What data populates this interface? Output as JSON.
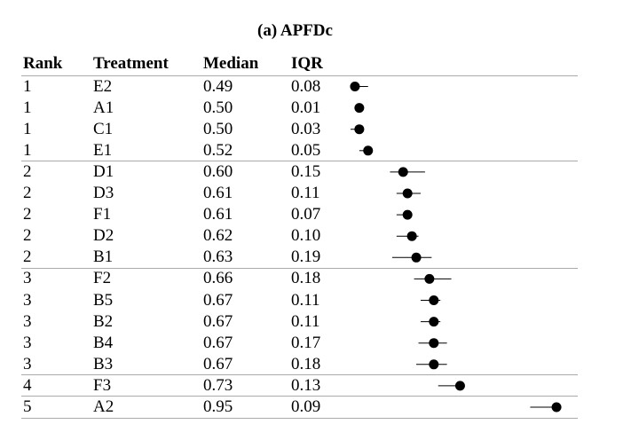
{
  "title": "(a) APFDc",
  "columns": [
    "Rank",
    "Treatment",
    "Median",
    "IQR"
  ],
  "chart_data": {
    "type": "table",
    "xlim": [
      0.48,
      0.96
    ],
    "rows": [
      {
        "rank": "1",
        "treatment": "E2",
        "median": "0.49",
        "iqr": "0.08",
        "low": 0.48,
        "high": 0.52
      },
      {
        "rank": "1",
        "treatment": "A1",
        "median": "0.50",
        "iqr": "0.01",
        "low": 0.497,
        "high": 0.503
      },
      {
        "rank": "1",
        "treatment": "C1",
        "median": "0.50",
        "iqr": "0.03",
        "low": 0.48,
        "high": 0.505
      },
      {
        "rank": "1",
        "treatment": "E1",
        "median": "0.52",
        "iqr": "0.05",
        "low": 0.5,
        "high": 0.53
      },
      {
        "rank": "2",
        "treatment": "D1",
        "median": "0.60",
        "iqr": "0.15",
        "low": 0.57,
        "high": 0.65
      },
      {
        "rank": "2",
        "treatment": "D3",
        "median": "0.61",
        "iqr": "0.11",
        "low": 0.585,
        "high": 0.64
      },
      {
        "rank": "2",
        "treatment": "F1",
        "median": "0.61",
        "iqr": "0.07",
        "low": 0.585,
        "high": 0.615
      },
      {
        "rank": "2",
        "treatment": "D2",
        "median": "0.62",
        "iqr": "0.10",
        "low": 0.585,
        "high": 0.635
      },
      {
        "rank": "2",
        "treatment": "B1",
        "median": "0.63",
        "iqr": "0.19",
        "low": 0.575,
        "high": 0.665
      },
      {
        "rank": "3",
        "treatment": "F2",
        "median": "0.66",
        "iqr": "0.18",
        "low": 0.625,
        "high": 0.71
      },
      {
        "rank": "3",
        "treatment": "B5",
        "median": "0.67",
        "iqr": "0.11",
        "low": 0.64,
        "high": 0.685
      },
      {
        "rank": "3",
        "treatment": "B2",
        "median": "0.67",
        "iqr": "0.11",
        "low": 0.64,
        "high": 0.685
      },
      {
        "rank": "3",
        "treatment": "B4",
        "median": "0.67",
        "iqr": "0.17",
        "low": 0.635,
        "high": 0.7
      },
      {
        "rank": "3",
        "treatment": "B3",
        "median": "0.67",
        "iqr": "0.18",
        "low": 0.63,
        "high": 0.7
      },
      {
        "rank": "4",
        "treatment": "F3",
        "median": "0.73",
        "iqr": "0.13",
        "low": 0.68,
        "high": 0.73
      },
      {
        "rank": "5",
        "treatment": "A2",
        "median": "0.95",
        "iqr": "0.09",
        "low": 0.89,
        "high": 0.96
      }
    ]
  }
}
